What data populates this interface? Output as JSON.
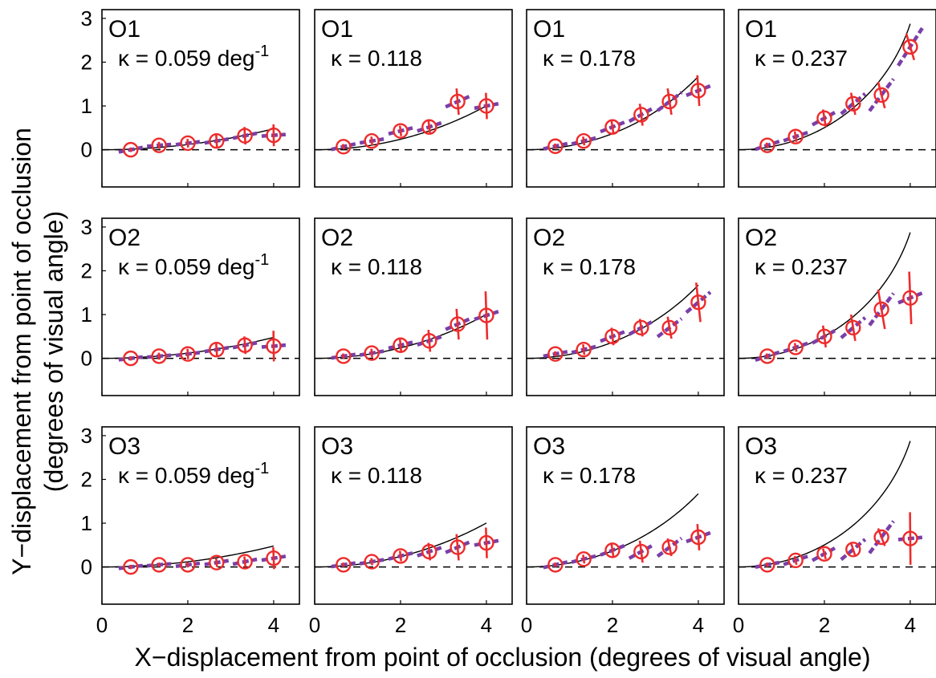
{
  "chart_data": {
    "type": "scatter",
    "xlabel": "X−displacement from point of occlusion (degrees of visual angle)",
    "ylabel_line1": "Y−displacement from point of occlusion",
    "ylabel_line2": "(degrees of visual angle)",
    "xlim": [
      0,
      4.6
    ],
    "ylim": [
      -0.85,
      3.2
    ],
    "x_ticks": [
      0,
      2,
      4
    ],
    "y_ticks": [
      0,
      1,
      2,
      3
    ],
    "x_tick_labels": [
      "0",
      "2",
      "4"
    ],
    "y_tick_labels": [
      "0",
      "1",
      "2",
      "3"
    ],
    "kappa_unit": "deg",
    "kappa_exp": "-1",
    "x": [
      0.67,
      1.33,
      2.0,
      2.67,
      3.33,
      4.0
    ],
    "rows": [
      {
        "observer": "O1",
        "panels": [
          {
            "kappa_text": "κ = 0.059",
            "kappa": 0.059,
            "y": [
              0.0,
              0.1,
              0.15,
              0.2,
              0.32,
              0.33
            ],
            "err": [
              0.05,
              0.08,
              0.1,
              0.15,
              0.2,
              0.25
            ]
          },
          {
            "kappa_text": "κ = 0.118",
            "kappa": 0.118,
            "y": [
              0.07,
              0.2,
              0.43,
              0.52,
              1.1,
              1.0
            ],
            "err": [
              0.06,
              0.1,
              0.12,
              0.15,
              0.3,
              0.3
            ]
          },
          {
            "kappa_text": "κ = 0.178",
            "kappa": 0.178,
            "y": [
              0.08,
              0.2,
              0.52,
              0.8,
              1.1,
              1.35
            ],
            "err": [
              0.06,
              0.1,
              0.15,
              0.25,
              0.3,
              0.35
            ]
          },
          {
            "kappa_text": "κ = 0.237",
            "kappa": 0.237,
            "y": [
              0.1,
              0.3,
              0.72,
              1.05,
              1.25,
              2.35
            ],
            "err": [
              0.06,
              0.12,
              0.2,
              0.25,
              0.3,
              0.3
            ]
          }
        ]
      },
      {
        "observer": "O2",
        "panels": [
          {
            "kappa_text": "κ = 0.059",
            "kappa": 0.059,
            "y": [
              0.0,
              0.05,
              0.1,
              0.2,
              0.3,
              0.28
            ],
            "err": [
              0.05,
              0.08,
              0.12,
              0.15,
              0.2,
              0.35
            ]
          },
          {
            "kappa_text": "κ = 0.118",
            "kappa": 0.118,
            "y": [
              0.05,
              0.12,
              0.3,
              0.4,
              0.78,
              0.98
            ],
            "err": [
              0.06,
              0.1,
              0.15,
              0.25,
              0.35,
              0.55
            ]
          },
          {
            "kappa_text": "κ = 0.178",
            "kappa": 0.178,
            "y": [
              0.1,
              0.2,
              0.5,
              0.7,
              0.7,
              1.28
            ],
            "err": [
              0.06,
              0.12,
              0.2,
              0.2,
              0.25,
              0.45
            ]
          },
          {
            "kappa_text": "κ = 0.237",
            "kappa": 0.237,
            "y": [
              0.05,
              0.25,
              0.5,
              0.7,
              1.12,
              1.38
            ],
            "err": [
              0.06,
              0.1,
              0.25,
              0.3,
              0.45,
              0.6
            ]
          }
        ]
      },
      {
        "observer": "O3",
        "panels": [
          {
            "kappa_text": "κ = 0.059",
            "kappa": 0.059,
            "y": [
              0.0,
              0.05,
              0.05,
              0.1,
              0.12,
              0.2
            ],
            "err": [
              0.05,
              0.05,
              0.06,
              0.1,
              0.12,
              0.25
            ]
          },
          {
            "kappa_text": "κ = 0.118",
            "kappa": 0.118,
            "y": [
              0.05,
              0.12,
              0.25,
              0.35,
              0.45,
              0.55
            ],
            "err": [
              0.05,
              0.08,
              0.12,
              0.2,
              0.3,
              0.35
            ]
          },
          {
            "kappa_text": "κ = 0.178",
            "kappa": 0.178,
            "y": [
              0.05,
              0.18,
              0.38,
              0.35,
              0.45,
              0.68
            ],
            "err": [
              0.05,
              0.1,
              0.15,
              0.25,
              0.2,
              0.3
            ]
          },
          {
            "kappa_text": "κ = 0.237",
            "kappa": 0.237,
            "y": [
              0.05,
              0.15,
              0.3,
              0.4,
              0.68,
              0.65
            ],
            "err": [
              0.05,
              0.1,
              0.12,
              0.15,
              0.2,
              0.6
            ]
          }
        ]
      }
    ],
    "colors": {
      "marker": "#ee2b2b",
      "fit": "#7a3fa8",
      "curve": "#000000",
      "baseline": "#000000"
    }
  }
}
